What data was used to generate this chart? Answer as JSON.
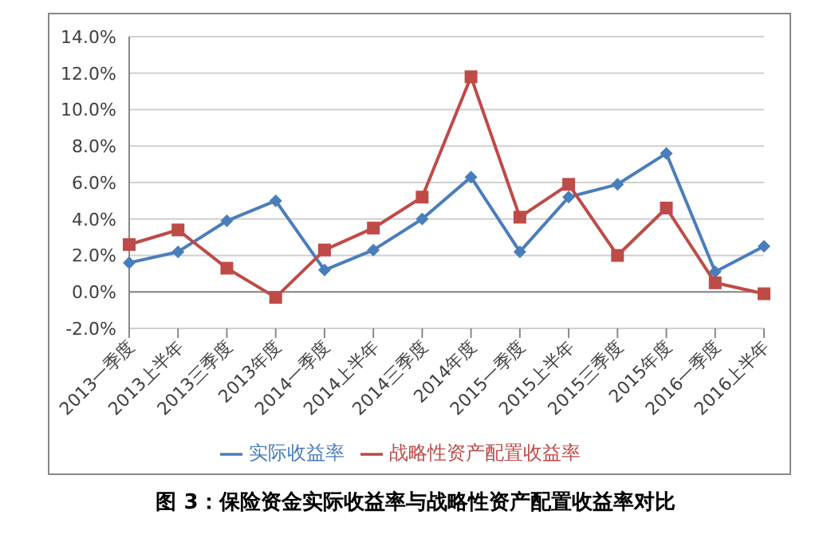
{
  "chart_data": {
    "type": "line",
    "title": "图 3：保险资金实际收益率与战略性资产配置收益率对比",
    "categories": [
      "2013一季度",
      "2013上半年",
      "2013三季度",
      "2013年度",
      "2014一季度",
      "2014上半年",
      "2014三季度",
      "2014年度",
      "2015一季度",
      "2015上半年",
      "2015三季度",
      "2015年度",
      "2016一季度",
      "2016上半年"
    ],
    "series": [
      {
        "name": "实际收益率",
        "color": "#4a7ebb",
        "marker": "diamond",
        "values": [
          1.6,
          2.2,
          3.9,
          5.0,
          1.2,
          2.3,
          4.0,
          6.3,
          2.2,
          5.2,
          5.9,
          7.6,
          1.1,
          2.5
        ]
      },
      {
        "name": "战略性资产配置收益率",
        "color": "#be4b48",
        "marker": "square",
        "values": [
          2.6,
          3.4,
          1.3,
          -0.3,
          2.3,
          3.5,
          5.2,
          11.8,
          4.1,
          5.9,
          2.0,
          4.6,
          0.5,
          -0.1
        ]
      }
    ],
    "ylim": [
      -2,
      14
    ],
    "yticks": [
      {
        "value": -2,
        "label": "-2.0%"
      },
      {
        "value": 0,
        "label": "0.0%"
      },
      {
        "value": 2,
        "label": "2.0%"
      },
      {
        "value": 4,
        "label": "4.0%"
      },
      {
        "value": 6,
        "label": "6.0%"
      },
      {
        "value": 8,
        "label": "8.0%"
      },
      {
        "value": 10,
        "label": "10.0%"
      },
      {
        "value": 12,
        "label": "12.0%"
      },
      {
        "value": 14,
        "label": "14.0%"
      }
    ],
    "grid": "y",
    "legend": "bottom"
  }
}
